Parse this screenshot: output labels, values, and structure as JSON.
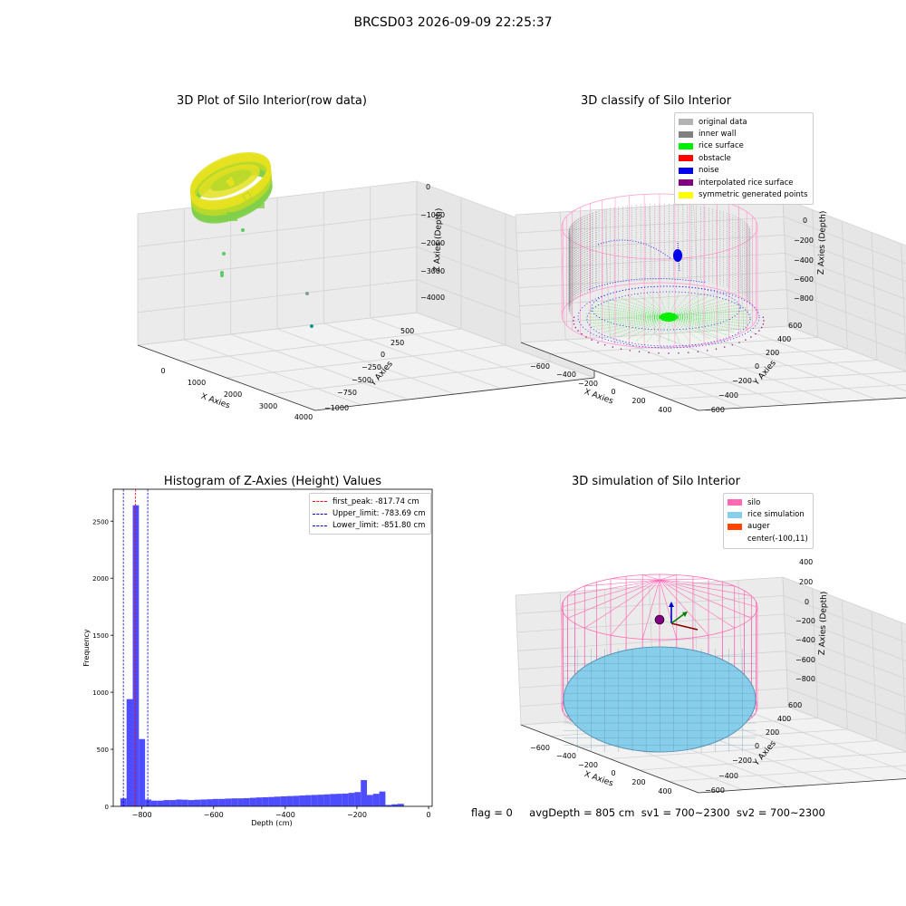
{
  "figure": {
    "suptitle": "BRCSD03 2026-09-09 22:25:37",
    "footer": {
      "flag": "flag = 0",
      "avg_depth": "avgDepth = 805 cm",
      "sv1": "sv1 = 700~2300",
      "sv2": "sv2 = 700~2300"
    }
  },
  "chart_data": [
    {
      "type": "scatter",
      "title": "3D Plot of Silo Interior(row data)",
      "xlabel": "X Axies",
      "ylabel": "Y Axies",
      "zlabel": "Z Axies (Depth)",
      "xticks": [
        "0",
        "1000",
        "2000",
        "3000",
        "4000"
      ],
      "yticks": [
        "500",
        "250",
        "0",
        "−250",
        "−500",
        "−750",
        "−1000"
      ],
      "zticks": [
        "0",
        "−1000",
        "−2000",
        "−3000",
        "−4000"
      ],
      "xlim": [
        -600,
        4000
      ],
      "ylim": [
        -1000,
        600
      ],
      "zlim": [
        -4200,
        100
      ],
      "colors": {
        "ring": "#e5e11f",
        "ring_dark": "#b8d82a",
        "ring_green": "#7fcf4a",
        "outlier": "#5ec962",
        "outlier_teal": "#21918c"
      },
      "outliers": [
        {
          "x": -200,
          "y": 300,
          "z": -1400
        },
        {
          "x": -400,
          "y": 400,
          "z": -2300
        },
        {
          "x": -500,
          "y": 420,
          "z": -3000
        },
        {
          "x": -520,
          "y": 430,
          "z": -3100
        },
        {
          "x": 3300,
          "y": 300,
          "z": -3100
        },
        {
          "x": 3700,
          "y": -300,
          "z": -3000
        }
      ]
    },
    {
      "type": "scatter",
      "title": "3D classify of Silo Interior",
      "xlabel": "X Axies",
      "ylabel": "Y Axies",
      "zlabel": "Z Axies (Depth)",
      "xticks": [
        "−600",
        "−400",
        "−200",
        "0",
        "200",
        "400"
      ],
      "yticks": [
        "600",
        "400",
        "200",
        "0",
        "−200",
        "−400",
        "−600"
      ],
      "zticks": [
        "400",
        "200",
        "0",
        "−200",
        "−400",
        "−600",
        "−800"
      ],
      "legend": [
        {
          "label": "original data",
          "color": "#b3b3b3"
        },
        {
          "label": "inner wall",
          "color": "#808080"
        },
        {
          "label": "rice surface",
          "color": "#00ee00"
        },
        {
          "label": "obstacle",
          "color": "#ff0000"
        },
        {
          "label": "noise",
          "color": "#0000ee"
        },
        {
          "label": "interpolated rice surface",
          "color": "#800080"
        },
        {
          "label": "symmetric generated points",
          "color": "#ffff00"
        }
      ],
      "silo_color": "#ff99cc",
      "silo_radius_cm": 600,
      "surface_depth_cm": -805
    },
    {
      "type": "bar",
      "title": "Histogram of Z-Axies (Height) Values",
      "xlabel": "Depth (cm)",
      "ylabel": "Frequency",
      "xlim": [
        -880,
        10
      ],
      "ylim": [
        0,
        2780
      ],
      "xticks": [
        -800,
        -600,
        -400,
        -200,
        0
      ],
      "xtick_labels": [
        "−800",
        "−600",
        "−400",
        "−200",
        "0"
      ],
      "yticks": [
        0,
        500,
        1000,
        1500,
        2000,
        2500
      ],
      "bar_color": "#4d4dff",
      "bins": {
        "start": -860,
        "width": 17.2
      },
      "values": [
        70,
        940,
        2640,
        590,
        60,
        50,
        50,
        55,
        55,
        60,
        58,
        55,
        58,
        60,
        62,
        65,
        65,
        68,
        70,
        70,
        72,
        75,
        78,
        80,
        82,
        85,
        88,
        90,
        92,
        95,
        98,
        100,
        102,
        105,
        108,
        110,
        112,
        118,
        125,
        230,
        100,
        110,
        130,
        12,
        18,
        22
      ],
      "vlines": [
        {
          "label": "first_peak: -817.74 cm",
          "x": -817.74,
          "color": "#ff0000"
        },
        {
          "label": "Upper_limit: -783.69 cm",
          "x": -783.69,
          "color": "#0000cc"
        },
        {
          "label": "Lower_limit: -851.80 cm",
          "x": -851.8,
          "color": "#0000cc"
        }
      ]
    },
    {
      "type": "scatter",
      "title": "3D simulation of Silo Interior",
      "xlabel": "X Axies",
      "ylabel": "Y Axies",
      "zlabel": "Z Axies (Depth)",
      "xticks": [
        "−600",
        "−400",
        "−200",
        "0",
        "200",
        "400"
      ],
      "yticks": [
        "600",
        "400",
        "200",
        "0",
        "−200",
        "−400",
        "−600"
      ],
      "zticks": [
        "400",
        "200",
        "0",
        "−200",
        "−400",
        "−600",
        "−800"
      ],
      "legend": [
        {
          "label": "silo",
          "color": "#ff69b4"
        },
        {
          "label": "rice simulation",
          "color": "#87ceeb"
        },
        {
          "label": "auger",
          "color": "#ff4500"
        },
        {
          "label": "center(-100,11)",
          "color": ""
        }
      ],
      "center": {
        "x": -100,
        "y": 11
      },
      "surface_depth_cm": -805
    }
  ]
}
